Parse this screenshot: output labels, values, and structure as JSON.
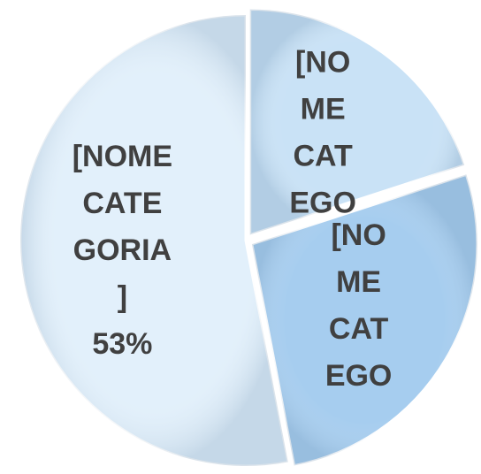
{
  "chart_data": {
    "type": "pie",
    "categories": [
      "[NOME CATEGOR…",
      "[NOME CATEGOR…",
      "[NOME CATEGORIA]"
    ],
    "values": [
      20,
      27,
      53
    ],
    "value_labels": [
      null,
      null,
      "53%"
    ],
    "colors": [
      "#c9e2f6",
      "#a6cdef",
      "#e2f0fb"
    ]
  }
}
